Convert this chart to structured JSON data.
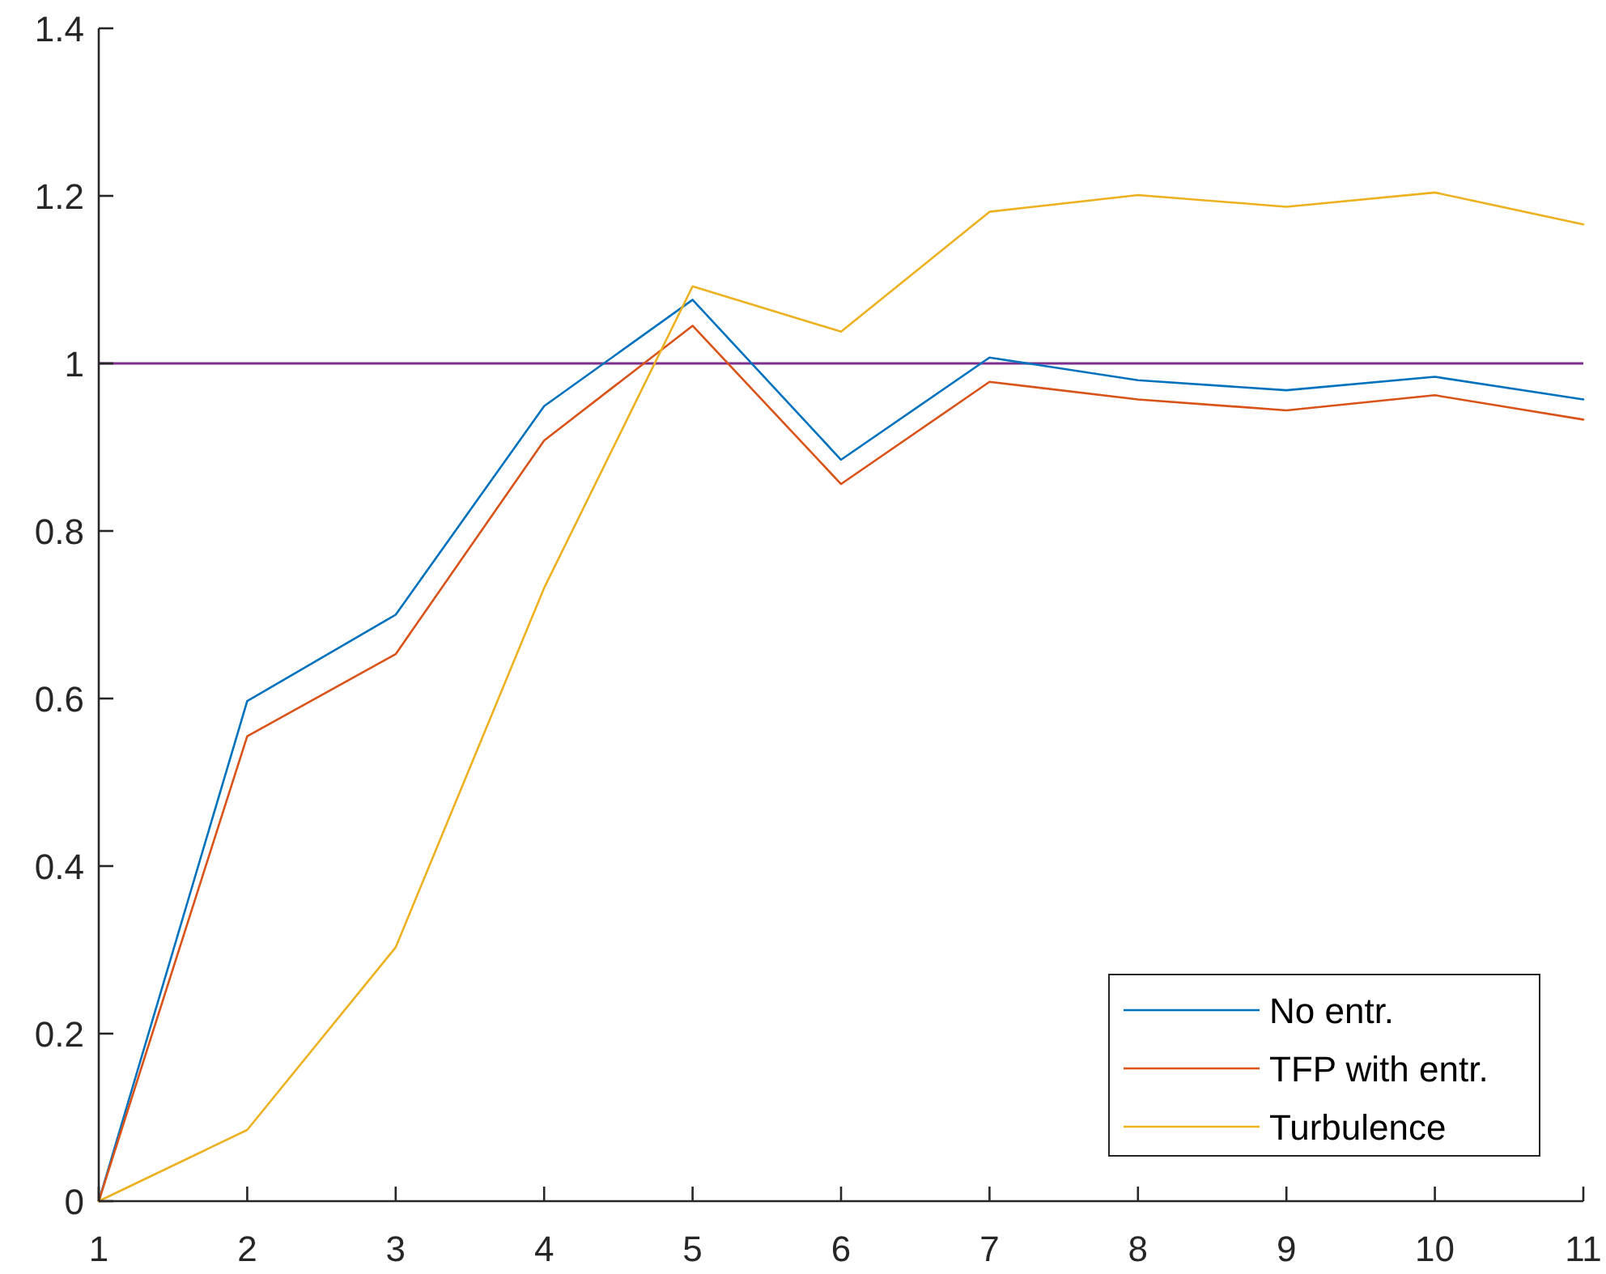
{
  "chart_data": {
    "type": "line",
    "x": [
      1,
      2,
      3,
      4,
      5,
      6,
      7,
      8,
      9,
      10,
      11
    ],
    "xlim": [
      1,
      11
    ],
    "xticks": [
      1,
      2,
      3,
      4,
      5,
      6,
      7,
      8,
      9,
      10,
      11
    ],
    "ylim": [
      0,
      1.4
    ],
    "yticks": [
      0,
      0.2,
      0.4,
      0.6,
      0.8,
      1,
      1.2,
      1.4
    ],
    "series": [
      {
        "name": "No entr.",
        "color": "#0072bd",
        "values": [
          0,
          0.597,
          0.7,
          0.949,
          1.076,
          0.885,
          1.007,
          0.98,
          0.968,
          0.984,
          0.957
        ]
      },
      {
        "name": "TFP with entr.",
        "color": "#d95319",
        "values": [
          0,
          0.555,
          0.653,
          0.908,
          1.045,
          0.856,
          0.978,
          0.957,
          0.944,
          0.962,
          0.933
        ]
      },
      {
        "name": "Turbulence",
        "color": "#edb120",
        "values": [
          0,
          0.085,
          0.303,
          0.732,
          1.092,
          1.038,
          1.181,
          1.201,
          1.187,
          1.204,
          1.166
        ]
      }
    ],
    "ref_lines": [
      {
        "axis": "y",
        "value": 1,
        "color": "#7e2f8e"
      }
    ],
    "legend": "bottom right",
    "line_style": "solid"
  }
}
